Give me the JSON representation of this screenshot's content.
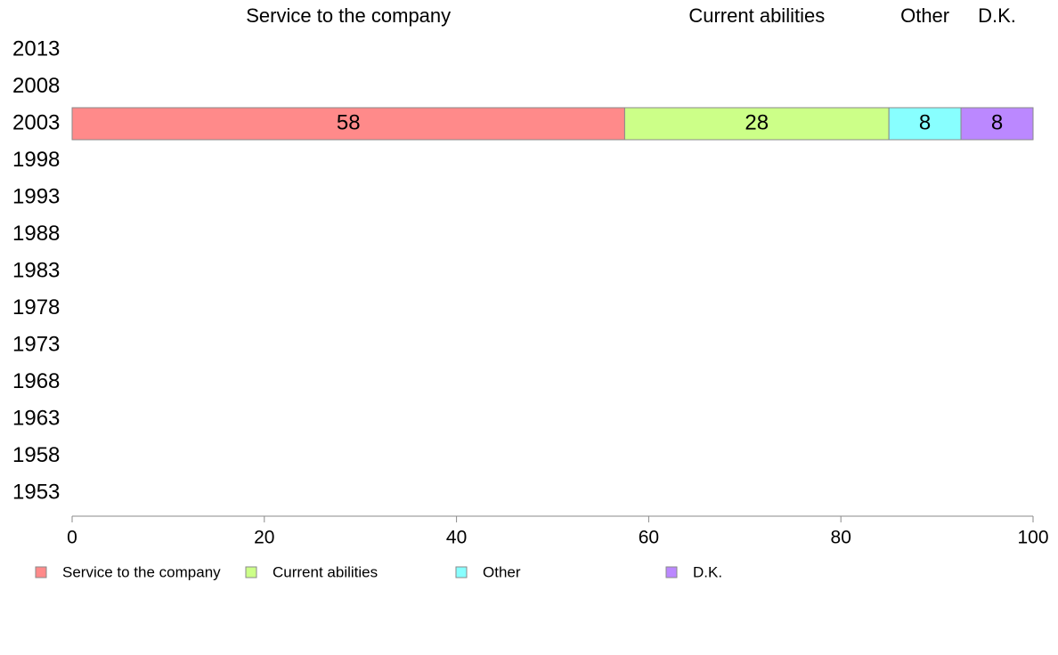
{
  "chart_data": {
    "type": "bar",
    "orientation": "horizontal",
    "stacked": true,
    "categories": [
      "2013",
      "2008",
      "2003",
      "1998",
      "1993",
      "1988",
      "1983",
      "1978",
      "1973",
      "1968",
      "1963",
      "1958",
      "1953"
    ],
    "series": [
      {
        "name": "Service to the company",
        "color": "#ff8a8a",
        "values": [
          null,
          null,
          57.5,
          null,
          null,
          null,
          null,
          null,
          null,
          null,
          null,
          null,
          null
        ],
        "labels": [
          "",
          "",
          "58",
          "",
          "",
          "",
          "",
          "",
          "",
          "",
          "",
          "",
          ""
        ]
      },
      {
        "name": "Current abilities",
        "color": "#ccff88",
        "values": [
          null,
          null,
          27.5,
          null,
          null,
          null,
          null,
          null,
          null,
          null,
          null,
          null,
          null
        ],
        "labels": [
          "",
          "",
          "28",
          "",
          "",
          "",
          "",
          "",
          "",
          "",
          "",
          "",
          ""
        ]
      },
      {
        "name": "Other",
        "color": "#88ffff",
        "values": [
          null,
          null,
          7.5,
          null,
          null,
          null,
          null,
          null,
          null,
          null,
          null,
          null,
          null
        ],
        "labels": [
          "",
          "",
          "8",
          "",
          "",
          "",
          "",
          "",
          "",
          "",
          "",
          "",
          ""
        ]
      },
      {
        "name": "D.K.",
        "color": "#bb88ff",
        "values": [
          null,
          null,
          7.5,
          null,
          null,
          null,
          null,
          null,
          null,
          null,
          null,
          null,
          null
        ],
        "labels": [
          "",
          "",
          "8",
          "",
          "",
          "",
          "",
          "",
          "",
          "",
          "",
          "",
          ""
        ]
      }
    ],
    "xlim": [
      0,
      100
    ],
    "xticks": [
      0,
      20,
      40,
      60,
      80,
      100
    ],
    "header_labels": [
      "Service to the company",
      "Current abilities",
      "Other",
      "D.K."
    ],
    "grid": false,
    "legend": "bottom"
  }
}
